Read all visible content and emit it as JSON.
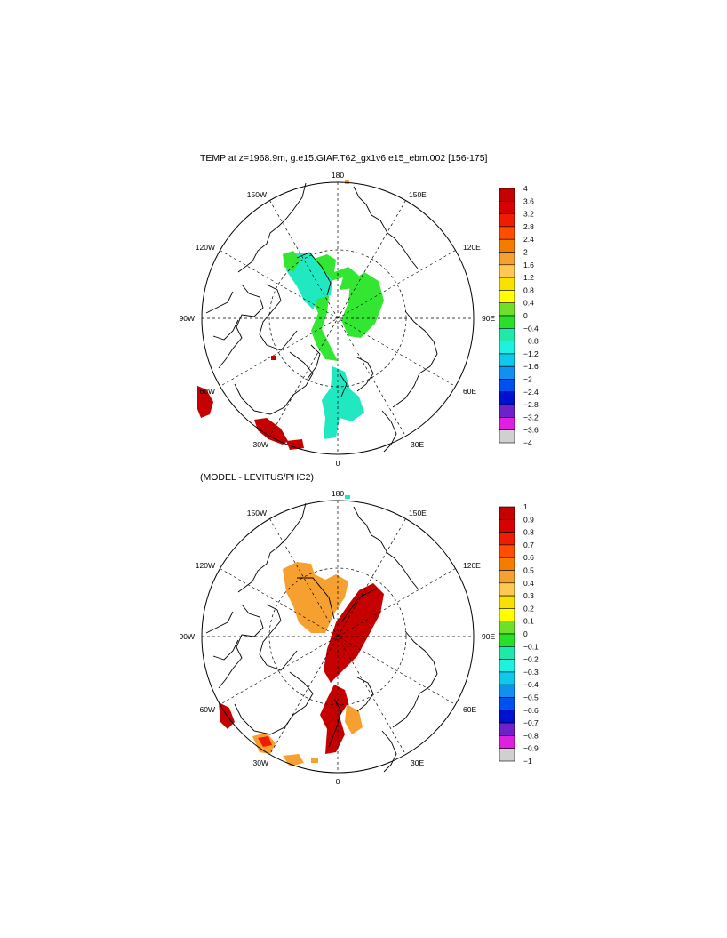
{
  "panels": [
    {
      "id": "top",
      "title": "TEMP at z=1968.9m, g.e15.GIAF.T62_gx1v6.e15_ebm.002 [156-175]",
      "lon_labels": [
        "180",
        "150E",
        "120E",
        "90E",
        "60E",
        "30E",
        "0",
        "30W",
        "60W",
        "90W",
        "120W",
        "150W"
      ],
      "colorbar": {
        "labels": [
          "4",
          "3.6",
          "3.2",
          "2.8",
          "2.4",
          "2",
          "1.6",
          "1.2",
          "0.8",
          "0.4",
          "0",
          "−0.4",
          "−0.8",
          "−1.2",
          "−1.6",
          "−2",
          "−2.4",
          "−2.8",
          "−3.2",
          "−3.6",
          "−4"
        ],
        "colors": [
          "#c40000",
          "#d80000",
          "#ee1c00",
          "#ff4e00",
          "#f47d00",
          "#f6a030",
          "#ffc850",
          "#f8e000",
          "#ffff00",
          "#6ee02a",
          "#28e028",
          "#20e8a8",
          "#20f0e0",
          "#10c8ec",
          "#1090f0",
          "#0050f0",
          "#0010d0",
          "#7020c8",
          "#e020e0",
          "#d0d0d0",
          "#707070"
        ]
      }
    },
    {
      "id": "bottom",
      "title": "(MODEL - LEVITUS/PHC2)",
      "lon_labels": [
        "180",
        "150E",
        "120E",
        "90E",
        "60E",
        "30E",
        "0",
        "30W",
        "60W",
        "90W",
        "120W",
        "150W"
      ],
      "colorbar": {
        "labels": [
          "1",
          "0.9",
          "0.8",
          "0.7",
          "0.6",
          "0.5",
          "0.4",
          "0.3",
          "0.2",
          "0.1",
          "0",
          "−0.1",
          "−0.2",
          "−0.3",
          "−0.4",
          "−0.5",
          "−0.6",
          "−0.7",
          "−0.8",
          "−0.9",
          "−1"
        ],
        "colors": [
          "#c40000",
          "#d80000",
          "#ee1c00",
          "#ff4e00",
          "#f47d00",
          "#f6a030",
          "#ffc850",
          "#f8e000",
          "#ffff00",
          "#6ee02a",
          "#28e028",
          "#20e8a8",
          "#20f0e0",
          "#10c8ec",
          "#1090f0",
          "#0050f0",
          "#0010d0",
          "#7020c8",
          "#e020e0",
          "#d0d0d0",
          "#707070"
        ]
      }
    }
  ]
}
